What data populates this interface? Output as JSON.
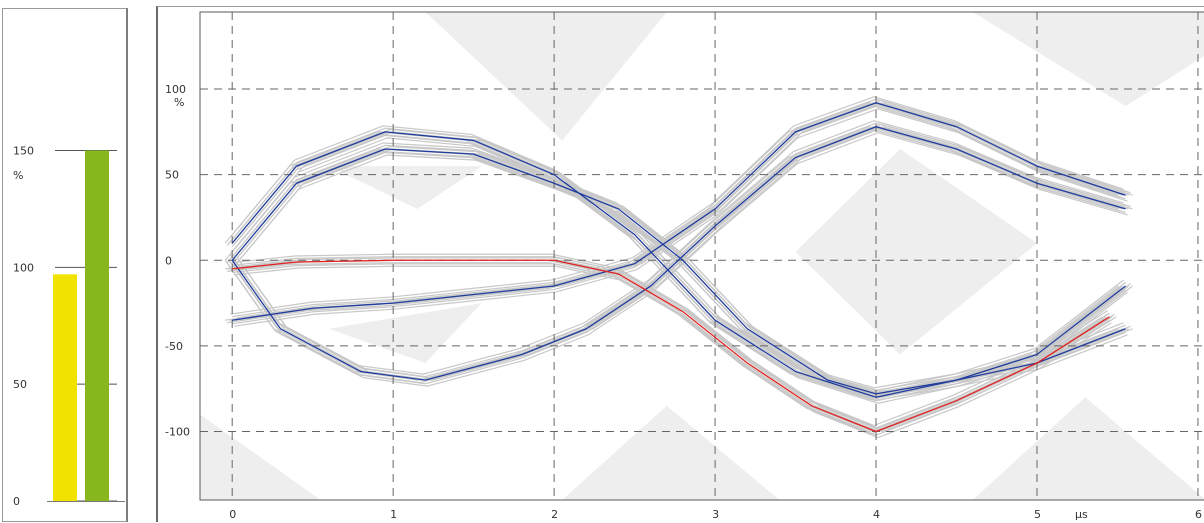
{
  "chart_data": [
    {
      "type": "bar",
      "y_ticks": [
        0,
        50,
        100,
        150
      ],
      "y_tick_labels": [
        "0",
        "50",
        "100",
        "150"
      ],
      "ylabel": "%",
      "ylim": [
        0,
        190
      ],
      "values": [
        97,
        150
      ],
      "colors": [
        "#f2e200",
        "#86b81e"
      ],
      "grid": "partial"
    },
    {
      "type": "line",
      "x_ticks": [
        0,
        1,
        2,
        3,
        4,
        5,
        6
      ],
      "x_tick_labels": [
        "0",
        "1",
        "2",
        "3",
        "4",
        "5",
        "6"
      ],
      "y_ticks": [
        -100,
        -50,
        0,
        50,
        100
      ],
      "y_tick_labels": [
        "-100",
        "-50",
        "0",
        "50",
        "100"
      ],
      "xlabel": "µs",
      "ylabel": "%",
      "xlim": [
        -0.2,
        6.05
      ],
      "ylim": [
        -140,
        145
      ],
      "grid": true,
      "colors": {
        "trace": "#1f3c9e",
        "highlight": "#e02020",
        "persistence": "#c8c8c8",
        "mask": "#eeeeee"
      },
      "series": [
        {
          "color": "#1f3c9e",
          "x": [
            0,
            0.4,
            0.95,
            1.5,
            2.0,
            2.5,
            3.0,
            3.5,
            4.0,
            4.5,
            5.0,
            5.55
          ],
          "y": [
            10,
            55,
            75,
            70,
            50,
            15,
            -35,
            -65,
            -80,
            -70,
            -55,
            -15
          ]
        },
        {
          "color": "#1f3c9e",
          "x": [
            0,
            0.4,
            0.95,
            1.5,
            2.0,
            2.4,
            2.8,
            3.2,
            3.7,
            4.0,
            4.5,
            5.0,
            5.55
          ],
          "y": [
            0,
            45,
            65,
            62,
            45,
            30,
            0,
            -40,
            -70,
            -78,
            -70,
            -60,
            -40
          ]
        },
        {
          "color": "#1f3c9e",
          "x": [
            0,
            0.3,
            0.8,
            1.2,
            1.8,
            2.2,
            2.6,
            3.0,
            3.5,
            4.0,
            4.5,
            5.0,
            5.55
          ],
          "y": [
            0,
            -40,
            -65,
            -70,
            -55,
            -40,
            -15,
            20,
            60,
            78,
            65,
            45,
            30
          ]
        },
        {
          "color": "#1f3c9e",
          "x": [
            0,
            0.5,
            1.0,
            1.5,
            2.0,
            2.5,
            3.0,
            3.5,
            4.0,
            4.5,
            5.0,
            5.55
          ],
          "y": [
            -35,
            -28,
            -25,
            -20,
            -15,
            -2,
            30,
            75,
            92,
            78,
            55,
            38
          ]
        },
        {
          "color": "#e02020",
          "x": [
            0,
            0.4,
            1.0,
            1.5,
            2.0,
            2.4,
            2.8,
            3.2,
            3.6,
            4.0,
            4.5,
            5.0,
            5.45
          ],
          "y": [
            -5,
            -1,
            0,
            0,
            0,
            -8,
            -30,
            -60,
            -85,
            -100,
            -82,
            -60,
            -33
          ]
        }
      ]
    }
  ]
}
